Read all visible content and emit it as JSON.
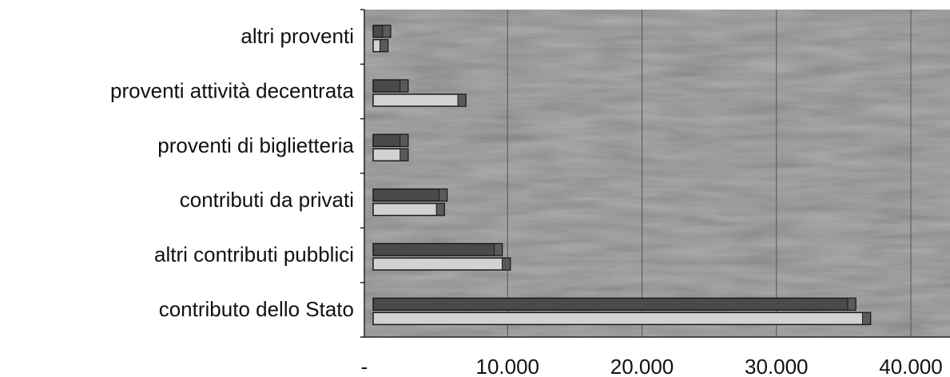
{
  "chart_data": {
    "type": "bar",
    "orientation": "horizontal",
    "categories": [
      "altri   proventi",
      "proventi  attività  decentrata",
      "proventi  di  biglietteria",
      "contributi  da  privati",
      "altri  contributi  pubblici",
      "contributo  dello  Stato"
    ],
    "series": [
      {
        "values": [
          1300,
          2600,
          2600,
          5500,
          9600,
          35900
        ]
      },
      {
        "values": [
          1100,
          6900,
          2600,
          5300,
          10200,
          37000
        ]
      }
    ],
    "xlim": [
      0,
      40000
    ],
    "xticks": [
      0,
      10000,
      20000,
      30000,
      40000
    ],
    "xtick_labels": [
      "-",
      "10.000",
      "20.000",
      "30.000",
      "40.000"
    ],
    "grid": true,
    "legend": "none"
  },
  "colors": {
    "plot_background": "#b4b4b4",
    "series_1_fill": "#4a4a4a",
    "series_2_fill": "#d2d2d2",
    "bar_end_cap": "#5a5a5a",
    "gridline": "#555555",
    "axis": "#222222"
  }
}
